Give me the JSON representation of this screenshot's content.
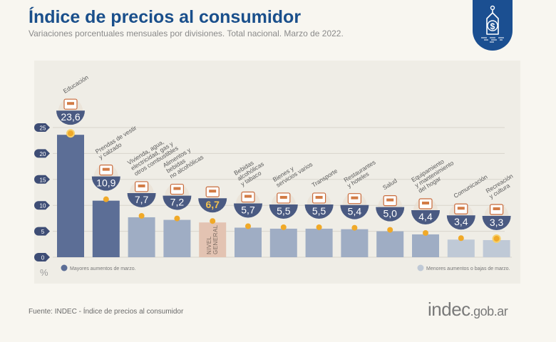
{
  "header": {
    "title": "Índice de precios al consumidor",
    "subtitle": "Variaciones porcentuales mensuales por divisiones. Total nacional. Marzo de 2022.",
    "badge_icon": "price-tag-dollar-icon"
  },
  "colors": {
    "title": "#1a4f8b",
    "high_bar": "#5c6e96",
    "mid_bar": "#9fadc4",
    "low_bar": "#bfc9d6",
    "general_bar": "#e3c3b2",
    "bowl": "#4a5a82",
    "dot": "#f0a928",
    "value_text": "#ffffff",
    "general_value_text": "#f2c14e"
  },
  "chart_data": {
    "type": "bar",
    "title": "Índice de precios al consumidor",
    "subtitle": "Variaciones porcentuales mensuales por divisiones. Total nacional. Marzo de 2022.",
    "xlabel": "",
    "ylabel": "%",
    "ylim": [
      0,
      25
    ],
    "yticks": [
      0,
      5,
      10,
      15,
      20,
      25
    ],
    "grid": true,
    "categories": [
      "Educación",
      "Prendas de vestir y calzado",
      "Vivienda, agua, electricidad, gas y otros combustibles",
      "Alimentos y bebidas no alcohólicas",
      "Nivel general",
      "Bebidas alcohólicas y tabaco",
      "Bienes y servicios varios",
      "Transporte",
      "Restaurantes y hoteles",
      "Salud",
      "Equipamiento y mantenimiento del hogar",
      "Comunicación",
      "Recreación y cultura"
    ],
    "label_lines": [
      [
        "Educación"
      ],
      [
        "Prendas de vestir",
        "y calzado"
      ],
      [
        "Vivienda, agua,",
        "electricidad, gas y",
        "otros combustibles"
      ],
      [
        "Alimentos y",
        "bebidas",
        "no alcohólicas"
      ],
      [],
      [
        "Bebidas",
        "alcohólicas",
        "y tabaco"
      ],
      [
        "Bienes y",
        "servicios varios"
      ],
      [
        "Transporte"
      ],
      [
        "Restaurantes",
        "y hoteles"
      ],
      [
        "Salud"
      ],
      [
        "Equipamiento",
        "y mantenimiento",
        "del hogar"
      ],
      [
        "Comunicación"
      ],
      [
        "Recreación",
        "y cultura"
      ]
    ],
    "values": [
      23.6,
      10.9,
      7.7,
      7.2,
      6.7,
      5.7,
      5.5,
      5.5,
      5.4,
      5.0,
      4.4,
      3.4,
      3.3
    ],
    "value_labels": [
      "23,6",
      "10,9",
      "7,7",
      "7,2",
      "6,7",
      "5,7",
      "5,5",
      "5,5",
      "5,4",
      "5,0",
      "4,4",
      "3,4",
      "3,3"
    ],
    "groups": [
      "high",
      "high",
      "mid",
      "mid",
      "general",
      "mid",
      "mid",
      "mid",
      "mid",
      "mid",
      "mid",
      "low",
      "low"
    ],
    "icons": [
      "book-icon",
      "clothing-icon",
      "lightbulb-icon",
      "food-icon",
      "basket-icon",
      "wine-bottle-icon",
      "comb-icon",
      "car-icon",
      "plate-cutlery-icon",
      "first-aid-icon",
      "washing-machine-icon",
      "smartphone-icon",
      "umbrella-sun-icon"
    ],
    "general_bar_label": [
      "NIVEL",
      "GENERAL"
    ],
    "legend": [
      {
        "label": "Mayores aumentos de marzo.",
        "group": "high",
        "position": "bottom-left"
      },
      {
        "label": "Menores aumentos o bajas de marzo.",
        "group": "low",
        "position": "bottom-right"
      }
    ],
    "unit_label": "%"
  },
  "footer": {
    "source": "Fuente: INDEC - Índice de precios al consumidor",
    "logo_main": "indec",
    "logo_suffix": ".gob.ar"
  }
}
